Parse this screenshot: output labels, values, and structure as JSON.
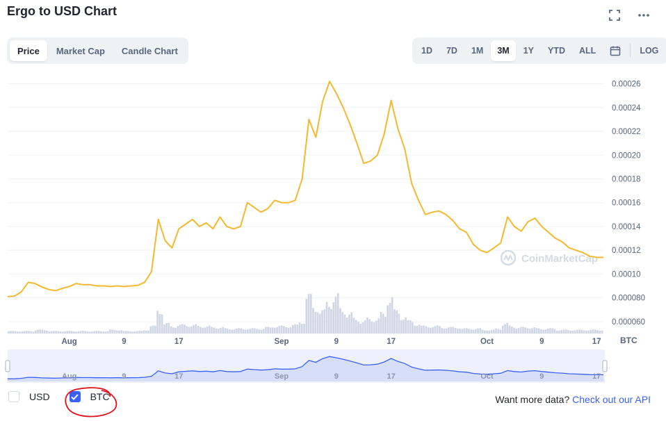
{
  "header": {
    "title": "Ergo to USD Chart"
  },
  "tabs": [
    {
      "label": "Price",
      "active": true
    },
    {
      "label": "Market Cap",
      "active": false
    },
    {
      "label": "Candle Chart",
      "active": false
    }
  ],
  "ranges": [
    {
      "label": "1D",
      "active": false
    },
    {
      "label": "7D",
      "active": false
    },
    {
      "label": "1M",
      "active": false
    },
    {
      "label": "3M",
      "active": true
    },
    {
      "label": "1Y",
      "active": false
    },
    {
      "label": "YTD",
      "active": false
    },
    {
      "label": "ALL",
      "active": false
    }
  ],
  "log_label": "LOG",
  "legend": {
    "usd_label": "USD",
    "btc_label": "BTC",
    "usd_checked": false,
    "btc_checked": true
  },
  "footer": {
    "text": "Want more data?",
    "link": "Check out our API"
  },
  "watermark": "CoinMarketCap",
  "colors": {
    "line": "#f5b82e",
    "volume": "#cfd6e4",
    "accent": "#3861fb",
    "annotation": "#e0101a"
  },
  "chart_data": {
    "type": "line",
    "ylabel": "",
    "unit_label": "BTC",
    "y_ticks": [
      0.00026,
      0.00024,
      0.00022,
      0.0002,
      0.00018,
      0.00016,
      0.00014,
      0.00012,
      0.0001,
      8e-05,
      6e-05
    ],
    "y_tick_labels": [
      "0.00026",
      "0.00024",
      "0.00022",
      "0.00020",
      "0.00018",
      "0.00016",
      "0.00014",
      "0.00012",
      "0.00010",
      "0.000080",
      "0.000060"
    ],
    "ylim": [
      5e-05,
      0.000265
    ],
    "x_ticks": [
      {
        "label": "Aug",
        "day": 9
      },
      {
        "label": "9",
        "day": 17
      },
      {
        "label": "17",
        "day": 25
      },
      {
        "label": "Sep",
        "day": 40
      },
      {
        "label": "9",
        "day": 48
      },
      {
        "label": "17",
        "day": 56
      },
      {
        "label": "Oct",
        "day": 70
      },
      {
        "label": "9",
        "day": 78
      },
      {
        "label": "17",
        "day": 86
      }
    ],
    "xlim": [
      0,
      87
    ],
    "series": [
      {
        "values": [
          [
            0,
            8.1e-05
          ],
          [
            1,
            8.15e-05
          ],
          [
            2,
            8.5e-05
          ],
          [
            3,
            9.3e-05
          ],
          [
            4,
            9.2e-05
          ],
          [
            5,
            8.9e-05
          ],
          [
            6,
            8.7e-05
          ],
          [
            7,
            8.6e-05
          ],
          [
            8,
            8.8e-05
          ],
          [
            9,
            8.95e-05
          ],
          [
            10,
            9.2e-05
          ],
          [
            11,
            9.1e-05
          ],
          [
            12,
            9.1e-05
          ],
          [
            13,
            9e-05
          ],
          [
            14,
            9e-05
          ],
          [
            15,
            8.95e-05
          ],
          [
            16,
            9e-05
          ],
          [
            17,
            8.95e-05
          ],
          [
            18,
            9e-05
          ],
          [
            19,
            9.05e-05
          ],
          [
            20,
            9.3e-05
          ],
          [
            21,
            0.000102
          ],
          [
            22,
            0.000146
          ],
          [
            23,
            0.000128
          ],
          [
            24,
            0.000122
          ],
          [
            25,
            0.000138
          ],
          [
            26,
            0.000142
          ],
          [
            27,
            0.000146
          ],
          [
            28,
            0.00014
          ],
          [
            29,
            0.000143
          ],
          [
            30,
            0.000138
          ],
          [
            31,
            0.000148
          ],
          [
            32,
            0.00014
          ],
          [
            33,
            0.000138
          ],
          [
            34,
            0.00014
          ],
          [
            35,
            0.00016
          ],
          [
            36,
            0.000156
          ],
          [
            37,
            0.000152
          ],
          [
            38,
            0.000155
          ],
          [
            39,
            0.000162
          ],
          [
            40,
            0.00016
          ],
          [
            41,
            0.00016
          ],
          [
            42,
            0.000162
          ],
          [
            43,
            0.00018
          ],
          [
            44,
            0.00023
          ],
          [
            45,
            0.000215
          ],
          [
            46,
            0.000245
          ],
          [
            47,
            0.000262
          ],
          [
            48,
            0.000252
          ],
          [
            49,
            0.00024
          ],
          [
            50,
            0.000226
          ],
          [
            51,
            0.00021
          ],
          [
            52,
            0.000193
          ],
          [
            53,
            0.000195
          ],
          [
            54,
            0.0002
          ],
          [
            55,
            0.000218
          ],
          [
            56,
            0.000246
          ],
          [
            57,
            0.000222
          ],
          [
            58,
            0.000205
          ],
          [
            59,
            0.000176
          ],
          [
            60,
            0.000162
          ],
          [
            61,
            0.00015
          ],
          [
            62,
            0.000152
          ],
          [
            63,
            0.000153
          ],
          [
            64,
            0.00015
          ],
          [
            65,
            0.000145
          ],
          [
            66,
            0.000138
          ],
          [
            67,
            0.000135
          ],
          [
            68,
            0.000125
          ],
          [
            69,
            0.00012
          ],
          [
            70,
            0.000118
          ],
          [
            71,
            0.000122
          ],
          [
            72,
            0.000126
          ],
          [
            73,
            0.000148
          ],
          [
            74,
            0.00014
          ],
          [
            75,
            0.000136
          ],
          [
            76,
            0.000144
          ],
          [
            77,
            0.000147
          ],
          [
            78,
            0.00014
          ],
          [
            79,
            0.000135
          ],
          [
            80,
            0.00013
          ],
          [
            81,
            0.000127
          ],
          [
            82,
            0.000122
          ],
          [
            83,
            0.00012
          ],
          [
            84,
            0.000118
          ],
          [
            85,
            0.000115
          ],
          [
            86,
            0.000114
          ],
          [
            87,
            0.000114
          ]
        ]
      }
    ],
    "volume": [
      2,
      2,
      2,
      2,
      3,
      3,
      2,
      2,
      2,
      2,
      2,
      2,
      2,
      2,
      2,
      3,
      3,
      2,
      2,
      2,
      3,
      6,
      20,
      8,
      6,
      7,
      7,
      7,
      6,
      6,
      5,
      5,
      4,
      4,
      4,
      4,
      4,
      4,
      5,
      6,
      6,
      6,
      7,
      10,
      30,
      22,
      18,
      26,
      30,
      20,
      16,
      12,
      10,
      12,
      12,
      16,
      30,
      18,
      14,
      10,
      8,
      6,
      6,
      6,
      5,
      5,
      5,
      4,
      4,
      4,
      3,
      3,
      4,
      8,
      6,
      5,
      5,
      5,
      4,
      4,
      4,
      3,
      3,
      3,
      3,
      3,
      3,
      3
    ],
    "grid": true,
    "legend": "bottom-left"
  }
}
